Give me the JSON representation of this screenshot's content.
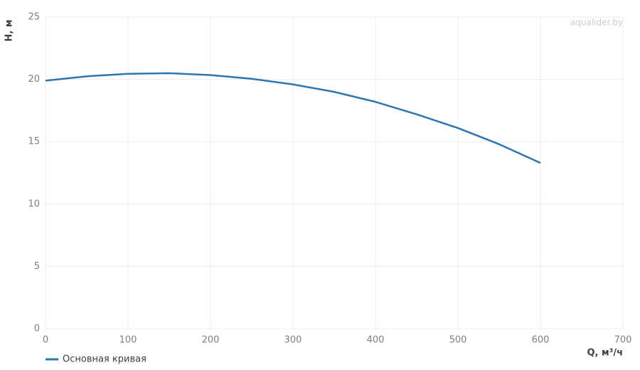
{
  "chart_data": {
    "type": "line",
    "watermark": "aqualider.by",
    "x_label": "Q, м³/ч",
    "y_label": "H, м",
    "x": [
      0,
      50,
      100,
      150,
      200,
      250,
      300,
      350,
      400,
      450,
      500,
      550,
      600
    ],
    "series": [
      {
        "name": "Основная кривая",
        "color": "#2a77b2",
        "values": [
          19.9,
          20.25,
          20.45,
          20.5,
          20.35,
          20.05,
          19.6,
          19.0,
          18.2,
          17.2,
          16.1,
          14.8,
          13.3
        ]
      }
    ],
    "xlim": [
      0,
      700
    ],
    "xticks": [
      0,
      100,
      200,
      300,
      400,
      500,
      600,
      700
    ],
    "ylim": [
      0,
      25
    ],
    "yticks": [
      0,
      5,
      10,
      15,
      20,
      25
    ],
    "grid": true,
    "legend": "bottom-left"
  }
}
